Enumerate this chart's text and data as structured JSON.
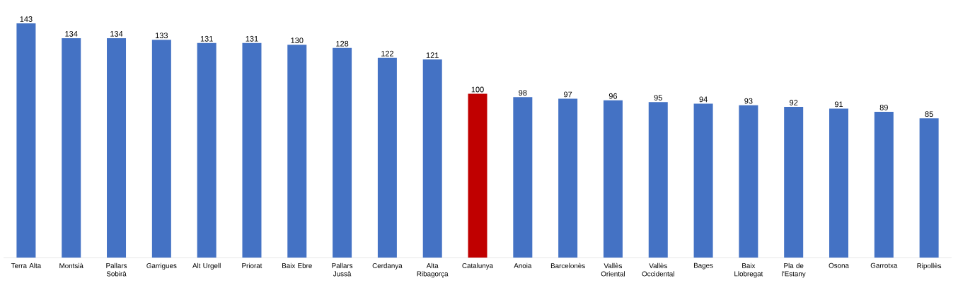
{
  "chart_data": {
    "type": "bar",
    "categories": [
      "Terra Alta",
      "Montsià",
      "Pallars Sobirà",
      "Garrigues",
      "Alt Urgell",
      "Priorat",
      "Baix Ebre",
      "Pallars Jussà",
      "Cerdanya",
      "Alta Ribagorça",
      "Catalunya",
      "Anoia",
      "Barcelonès",
      "Vallès Oriental",
      "Vallès Occidental",
      "Bages",
      "Baix Llobregat",
      "Pla de l'Estany",
      "Osona",
      "Garrotxa",
      "Ripollès"
    ],
    "values": [
      143,
      134,
      134,
      133,
      131,
      131,
      130,
      128,
      122,
      121,
      100,
      98,
      97,
      96,
      95,
      94,
      93,
      92,
      91,
      89,
      85
    ],
    "colors": [
      "#4472c4",
      "#4472c4",
      "#4472c4",
      "#4472c4",
      "#4472c4",
      "#4472c4",
      "#4472c4",
      "#4472c4",
      "#4472c4",
      "#4472c4",
      "#c00000",
      "#4472c4",
      "#4472c4",
      "#4472c4",
      "#4472c4",
      "#4472c4",
      "#4472c4",
      "#4472c4",
      "#4472c4",
      "#4472c4",
      "#4472c4"
    ],
    "data_labels": true
  }
}
